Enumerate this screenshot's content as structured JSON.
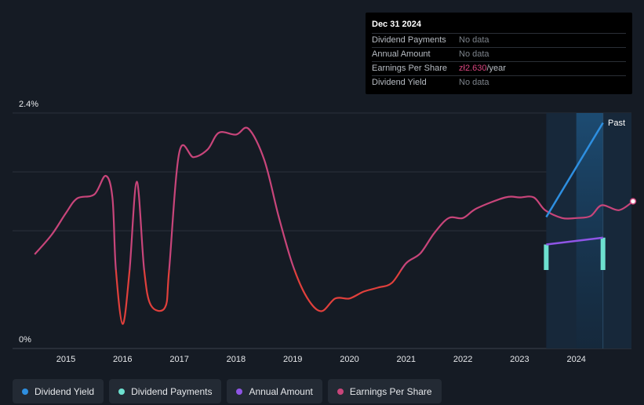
{
  "chart_data": {
    "type": "line",
    "x_ticks": [
      "2015",
      "2016",
      "2017",
      "2018",
      "2019",
      "2020",
      "2021",
      "2022",
      "2023",
      "2024"
    ],
    "y_labels": {
      "top": "2.4%",
      "bottom": "0%"
    },
    "ylim": [
      0,
      2.4
    ],
    "past_label": "Past",
    "series": [
      {
        "name": "Earnings Per Share",
        "color": "#c8457a",
        "negative_color": "#e0403c",
        "points": [
          [
            2014.45,
            0.96
          ],
          [
            2014.75,
            1.16
          ],
          [
            2015.0,
            1.38
          ],
          [
            2015.2,
            1.53
          ],
          [
            2015.5,
            1.57
          ],
          [
            2015.7,
            1.76
          ],
          [
            2015.82,
            1.54
          ],
          [
            2015.88,
            0.82
          ],
          [
            2016.0,
            0.25
          ],
          [
            2016.12,
            0.78
          ],
          [
            2016.25,
            1.7
          ],
          [
            2016.38,
            0.8
          ],
          [
            2016.5,
            0.44
          ],
          [
            2016.75,
            0.42
          ],
          [
            2016.82,
            0.8
          ],
          [
            2017.0,
            2.0
          ],
          [
            2017.25,
            1.95
          ],
          [
            2017.5,
            2.03
          ],
          [
            2017.7,
            2.2
          ],
          [
            2018.0,
            2.18
          ],
          [
            2018.22,
            2.24
          ],
          [
            2018.5,
            1.92
          ],
          [
            2018.75,
            1.35
          ],
          [
            2019.0,
            0.85
          ],
          [
            2019.25,
            0.52
          ],
          [
            2019.5,
            0.38
          ],
          [
            2019.75,
            0.51
          ],
          [
            2020.0,
            0.51
          ],
          [
            2020.25,
            0.58
          ],
          [
            2020.5,
            0.62
          ],
          [
            2020.75,
            0.67
          ],
          [
            2021.0,
            0.87
          ],
          [
            2021.25,
            0.97
          ],
          [
            2021.5,
            1.18
          ],
          [
            2021.75,
            1.33
          ],
          [
            2022.0,
            1.33
          ],
          [
            2022.25,
            1.43
          ],
          [
            2022.75,
            1.54
          ],
          [
            2023.0,
            1.54
          ],
          [
            2023.25,
            1.54
          ],
          [
            2023.45,
            1.41
          ],
          [
            2023.75,
            1.33
          ],
          [
            2024.0,
            1.33
          ],
          [
            2024.25,
            1.35
          ],
          [
            2024.45,
            1.46
          ],
          [
            2024.75,
            1.41
          ],
          [
            2025.0,
            1.5
          ]
        ]
      },
      {
        "name": "Dividend Yield",
        "color": "#2e8fe0",
        "points": [
          [
            2023.47,
            1.34
          ],
          [
            2024.47,
            2.3
          ]
        ]
      },
      {
        "name": "Annual Amount",
        "color": "#8f55e6",
        "points": [
          [
            2023.47,
            1.06
          ],
          [
            2024.47,
            1.13
          ]
        ]
      },
      {
        "name": "Dividend Payments",
        "color": "#6de0cf",
        "bars": [
          {
            "x": 2023.47,
            "from": 0.8,
            "to": 1.06
          },
          {
            "x": 2024.47,
            "from": 0.8,
            "to": 1.13
          }
        ]
      }
    ],
    "shaded_region": {
      "from": 2023.47,
      "to": 2025.0,
      "highlight_from": 2024.0,
      "highlight_to": 2024.47
    }
  },
  "tooltip": {
    "date": "Dec 31 2024",
    "rows": [
      {
        "label": "Dividend Payments",
        "value": "No data"
      },
      {
        "label": "Annual Amount",
        "value": "No data"
      },
      {
        "label": "Earnings Per Share",
        "value": "zł2.630",
        "unit": "/year"
      },
      {
        "label": "Dividend Yield",
        "value": "No data"
      }
    ]
  },
  "legend": [
    {
      "label": "Dividend Yield",
      "color": "#2e8fe0"
    },
    {
      "label": "Dividend Payments",
      "color": "#6de0cf"
    },
    {
      "label": "Annual Amount",
      "color": "#8f55e6"
    },
    {
      "label": "Earnings Per Share",
      "color": "#c8457a"
    }
  ]
}
